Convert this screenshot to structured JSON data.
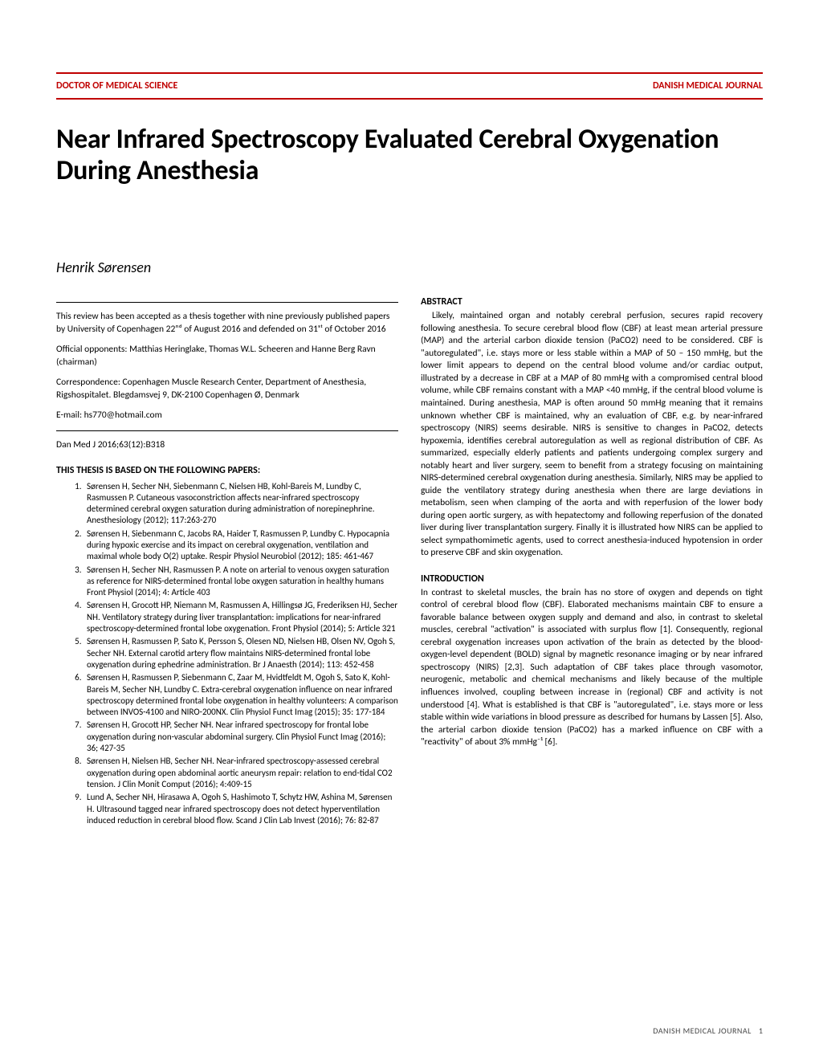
{
  "header": {
    "left": "DOCTOR OF MEDICAL SCIENCE",
    "right": "DANISH MEDICAL JOURNAL"
  },
  "title": "Near Infrared Spectroscopy Evaluated Cerebral Oxygenation During Anesthesia",
  "author": "Henrik Sørensen",
  "meta": {
    "acceptance": "This review has been accepted as a thesis together with nine previously published papers by University of Copenhagen 22ⁿᵈ of August 2016 and defended on 31ˢᵗ of October 2016",
    "opponents": "Official opponents: Matthias Heringlake, Thomas W.L. Scheeren and Hanne Berg Ravn (chairman)",
    "correspondence": "Correspondence: Copenhagen Muscle Research Center, Department of Anesthesia, Rigshospitalet. Blegdamsvej 9, DK-2100 Copenhagen Ø, Denmark",
    "email": "E-mail: hs770@hotmail.com"
  },
  "citation": "Dan Med J 2016;63(12):B318",
  "papers_heading": "THIS THESIS IS BASED ON THE FOLLOWING PAPERS:",
  "papers": [
    "Sørensen H, Secher NH, Siebenmann C, Nielsen HB, Kohl-Bareis M, Lundby C, Rasmussen P. Cutaneous vasoconstriction affects near-infrared spectroscopy determined cerebral oxygen saturation during administration of norepinephrine. Anesthesiology (2012); 117:263-270",
    "Sørensen H, Siebenmann C, Jacobs RA, Haider T, Rasmussen P, Lundby C. Hypocapnia during hypoxic exercise and its impact on cerebral oxygenation, ventilation and maximal whole body O(2) uptake. Respir Physiol Neurobiol (2012); 185: 461-467",
    "Sørensen H, Secher NH, Rasmussen P. A note on arterial to venous oxygen saturation as reference for NIRS-determined frontal lobe oxygen saturation in healthy humans Front Physiol (2014); 4: Article 403",
    "Sørensen H, Grocott HP, Niemann M, Rasmussen A, Hillingsø JG, Frederiksen HJ, Secher NH. Ventilatory strategy during liver transplantation: implications for near-infrared spectroscopy-determined frontal lobe oxygenation. Front Physiol (2014); 5: Article 321",
    "Sørensen H, Rasmussen P, Sato K, Persson S, Olesen ND, Nielsen HB, Olsen NV, Ogoh S, Secher NH. External carotid artery flow maintains NIRS-determined frontal lobe oxygenation during ephedrine administration. Br J Anaesth (2014); 113: 452-458",
    "Sørensen H, Rasmussen P, Siebenmann C, Zaar M, Hvidtfeldt M, Ogoh S, Sato K, Kohl-Bareis M, Secher NH, Lundby C. Extra-cerebral oxygenation influence on near infrared spectroscopy determined frontal lobe oxygenation in healthy volunteers: A comparison between INVOS-4100 and NIRO-200NX. Clin Physiol Funct Imag (2015); 35: 177-184",
    "Sørensen H, Grocott HP, Secher NH. Near infrared spectroscopy for frontal lobe oxygenation during non-vascular abdominal surgery. Clin Physiol Funct Imag (2016); 36; 427-35",
    "Sørensen H, Nielsen HB, Secher NH. Near-infrared spectroscopy-assessed cerebral oxygenation during open abdominal aortic aneurysm repair: relation to end-tidal CO2 tension. J Clin Monit Comput (2016); 4:409-15",
    "Lund A, Secher NH, Hirasawa A, Ogoh S, Hashimoto T, Schytz HW, Ashina M, Sørensen H. Ultrasound tagged near infrared spectroscopy does not detect hyperventilation induced reduction in cerebral blood flow. Scand J Clin Lab Invest (2016); 76: 82-87"
  ],
  "abstract": {
    "heading": "ABSTRACT",
    "body": "Likely, maintained organ and notably cerebral perfusion, secures rapid recovery following anesthesia. To secure cerebral blood flow (CBF) at least mean arterial pressure (MAP) and the arterial carbon dioxide tension (PaCO2) need to be considered. CBF is \"autoregulated\", i.e. stays more or less stable within a MAP of 50 – 150 mmHg, but the lower limit appears to depend on the central blood volume and/or cardiac output, illustrated by a decrease in CBF at a MAP of 80 mmHg with a compromised central blood volume, while CBF remains constant with a MAP <40 mmHg, if the central blood volume is maintained. During anesthesia, MAP is often around 50 mmHg meaning that it remains unknown whether CBF is maintained, why an evaluation of CBF, e.g. by near-infrared spectroscopy (NIRS) seems desirable. NIRS is sensitive to changes in PaCO2, detects hypoxemia, identifies cerebral autoregulation as well as regional distribution of CBF. As summarized, especially elderly patients and patients undergoing complex surgery and notably heart and liver surgery, seem to benefit from a strategy focusing on maintaining NIRS-determined cerebral oxygenation during anesthesia. Similarly, NIRS may be applied to guide the ventilatory strategy during anesthesia when there are large deviations in metabolism, seen when clamping of the aorta and with reperfusion of the lower body during open aortic surgery, as with hepatectomy and following reperfusion of the donated liver during liver transplantation surgery. Finally it is illustrated how NIRS can be applied to select sympathomimetic agents, used to correct anesthesia-induced hypotension in order to preserve CBF and skin oxygenation."
  },
  "introduction": {
    "heading": "INTRODUCTION",
    "body": "In contrast to skeletal muscles, the brain has no store of oxygen and depends on tight control of cerebral blood flow (CBF). Elaborated mechanisms maintain CBF to ensure a favorable balance between oxygen supply and demand and also, in contrast to skeletal muscles, cerebral \"activation\" is associated with surplus flow [1]. Consequently, regional cerebral oxygenation increases upon activation of the brain as detected by the blood-oxygen-level dependent (BOLD) signal by magnetic resonance imaging or by near infrared spectroscopy (NIRS) [2,3]. Such adaptation of CBF takes place through vasomotor, neurogenic, metabolic and chemical mechanisms and likely because of the multiple influences involved, coupling between increase in (regional) CBF and activity is not understood [4]. What is established is that CBF is \"autoregulated\", i.e. stays more or less stable within wide variations in blood pressure as described for humans by Lassen [5]. Also, the arterial carbon dioxide tension (PaCO2) has a marked influence on CBF with a \"reactivity\" of about 3% mmHg⁻¹ [6]."
  },
  "footer": {
    "journal": "DANISH MEDICAL JOURNAL",
    "page": "1"
  }
}
